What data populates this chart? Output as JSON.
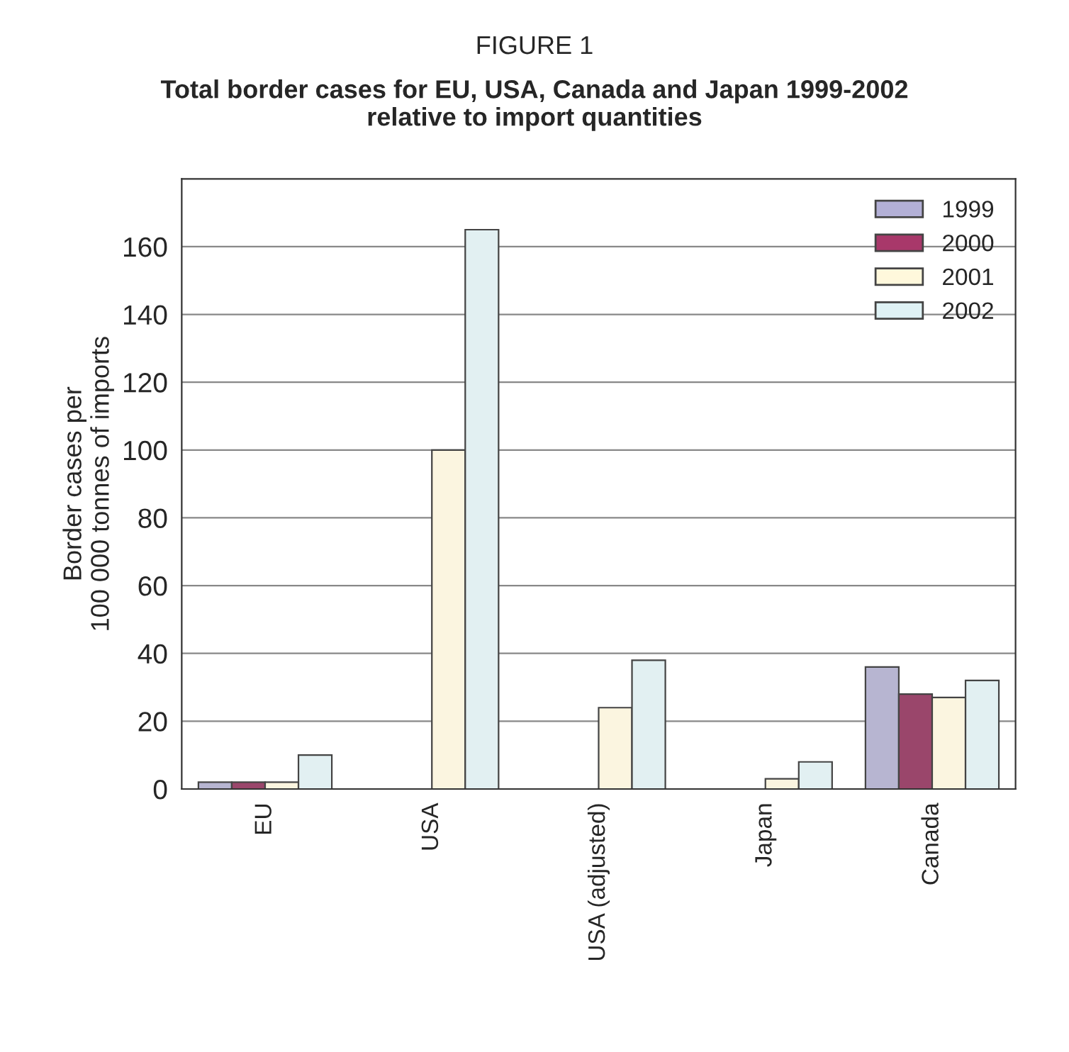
{
  "chart_data": {
    "type": "bar",
    "title": "FIGURE 1",
    "subtitle": "Total border cases for EU, USA, Canada and Japan 1999-2002\nrelative to import quantities",
    "ylabel": "Border cases per\n100 000 tonnes of imports",
    "categories": [
      "EU",
      "USA",
      "USA (adjusted)",
      "Japan",
      "Canada"
    ],
    "series": [
      {
        "name": "1999",
        "color": "#b3b0d6",
        "values": [
          2,
          null,
          null,
          null,
          36
        ]
      },
      {
        "name": "2000",
        "color": "#a8386a",
        "values": [
          2,
          null,
          null,
          null,
          28
        ]
      },
      {
        "name": "2001",
        "color": "#fff8dc",
        "values": [
          2,
          100,
          24,
          3,
          27
        ]
      },
      {
        "name": "2002",
        "color": "#dff2f5",
        "values": [
          10,
          165,
          38,
          8,
          32
        ]
      }
    ],
    "ylim": [
      0,
      180
    ],
    "yticks": [
      0,
      20,
      40,
      60,
      80,
      100,
      120,
      140,
      160
    ],
    "grid": "y",
    "legend": "top right"
  }
}
